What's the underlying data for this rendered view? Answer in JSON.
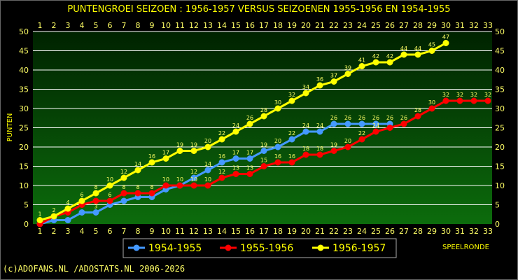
{
  "chart_data": {
    "type": "line",
    "title": "PUNTENGROEI  SEIZOEN : 1956-1957 VERSUS SEIZOENEN 1955-1956 EN 1954-1955",
    "ylabel": "PUNTEN",
    "xlabel": "SPEELRONDE",
    "xlim": [
      1,
      33
    ],
    "ylim": [
      0,
      50
    ],
    "x_ticks": [
      1,
      2,
      3,
      4,
      5,
      6,
      7,
      8,
      9,
      10,
      11,
      12,
      13,
      14,
      15,
      16,
      17,
      18,
      19,
      20,
      21,
      22,
      23,
      24,
      25,
      26,
      27,
      28,
      29,
      30,
      31,
      32,
      33
    ],
    "y_ticks": [
      0,
      5,
      10,
      15,
      20,
      25,
      30,
      35,
      40,
      45,
      50
    ],
    "grid": true,
    "legend_position": "bottom",
    "series": [
      {
        "name": "1954-1955",
        "color": "#4499ff",
        "x": [
          1,
          2,
          3,
          4,
          5,
          6,
          7,
          8,
          9,
          10,
          11,
          12,
          13,
          14,
          15,
          16,
          17,
          18,
          19,
          20,
          21,
          22,
          23,
          24,
          25,
          26
        ],
        "values": [
          0,
          1,
          1,
          3,
          3,
          5,
          6,
          7,
          7,
          9,
          10,
          12,
          14,
          16,
          17,
          17,
          19,
          20,
          22,
          24,
          24,
          26,
          26,
          26,
          26,
          26
        ],
        "labels": [
          null,
          null,
          null,
          null,
          "3",
          null,
          null,
          null,
          null,
          null,
          null,
          "12",
          "14",
          "16",
          "17",
          "17",
          "19",
          "20",
          "22",
          "24",
          "24",
          "26",
          "26",
          "26",
          "26",
          "26"
        ]
      },
      {
        "name": "1955-1956",
        "color": "#ff0000",
        "x": [
          1,
          2,
          3,
          4,
          5,
          6,
          7,
          8,
          9,
          10,
          11,
          12,
          13,
          14,
          15,
          16,
          17,
          18,
          19,
          20,
          21,
          22,
          23,
          24,
          25,
          26,
          27,
          28,
          29,
          30,
          31,
          32,
          33
        ],
        "values": [
          0,
          2,
          3,
          5,
          6,
          6,
          8,
          8,
          8,
          10,
          10,
          10,
          10,
          12,
          13,
          13,
          15,
          16,
          16,
          18,
          18,
          19,
          20,
          22,
          24,
          25,
          26,
          28,
          30,
          32,
          32,
          32,
          32
        ],
        "labels": [
          null,
          null,
          null,
          null,
          null,
          "6",
          "8",
          "8",
          "8",
          "10",
          "10",
          "10",
          "10",
          "12",
          "13",
          "13",
          "15",
          "16",
          "16",
          "18",
          "18",
          "19",
          "20",
          "22",
          "24",
          null,
          "26",
          "28",
          "30",
          "32",
          "32",
          "32",
          "32"
        ]
      },
      {
        "name": "1956-1957",
        "color": "#ffff00",
        "x": [
          1,
          2,
          3,
          4,
          5,
          6,
          7,
          8,
          9,
          10,
          11,
          12,
          13,
          14,
          15,
          16,
          17,
          18,
          19,
          20,
          21,
          22,
          23,
          24,
          25,
          26,
          27,
          28,
          29,
          30
        ],
        "values": [
          1,
          2,
          4,
          6,
          8,
          10,
          12,
          14,
          16,
          17,
          19,
          19,
          20,
          22,
          24,
          26,
          28,
          30,
          32,
          34,
          36,
          37,
          39,
          41,
          42,
          42,
          44,
          44,
          45,
          47
        ],
        "labels": [
          "1",
          "2",
          "4",
          "6",
          "8",
          "10",
          "12",
          "14",
          "16",
          "17",
          "19",
          "19",
          "20",
          "22",
          "24",
          "26",
          "28",
          "30",
          "32",
          "34",
          "36",
          "37",
          "39",
          "41",
          "42",
          "42",
          "44",
          "44",
          "45",
          "47"
        ]
      }
    ]
  },
  "footer": "(c)ADOFANS.NL /ADOSTATS.NL 2006-2026",
  "colors": {
    "background": "#000000",
    "plot_top": "#002a00",
    "plot_bottom": "#0a6a0a",
    "grid": "#ffffff",
    "text": "#ffff00"
  }
}
